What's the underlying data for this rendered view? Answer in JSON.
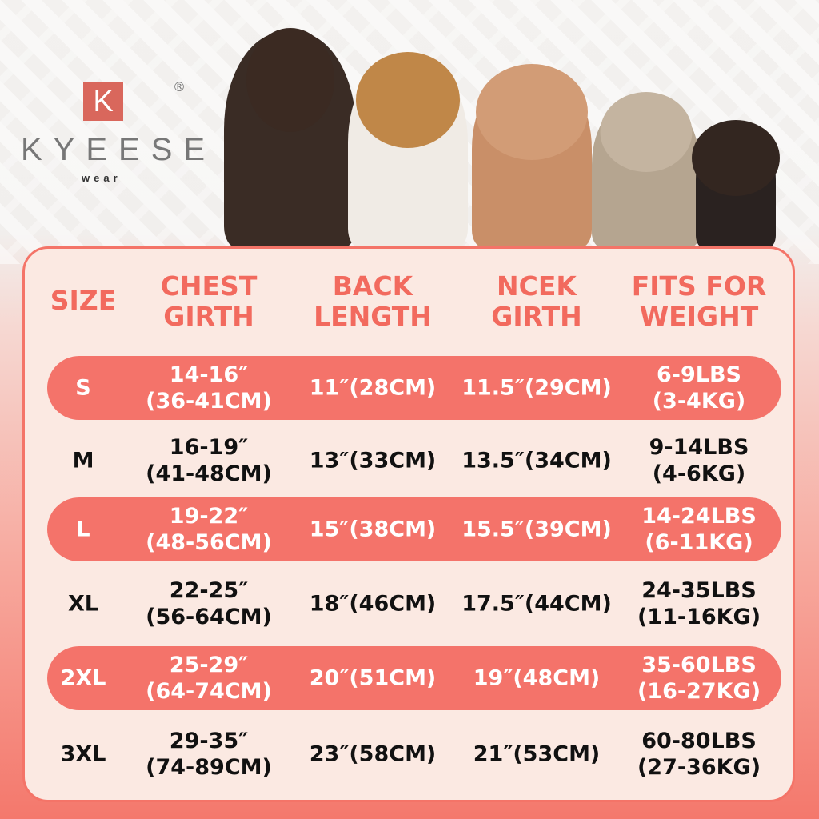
{
  "brand": {
    "logo_letter": "K",
    "name": "KYEESE",
    "sub": "wear",
    "registered": "®",
    "accent": "#f4736a",
    "panel_bg": "#fbe9e2"
  },
  "headers": [
    "SIZE",
    "CHEST\nGIRTH",
    "BACK\nLENGTH",
    "NCEK\nGIRTH",
    "FITS FOR\nWEIGHT"
  ],
  "rows": [
    {
      "size": "S",
      "chest": "14-16″\n(36-41CM)",
      "back": "11″(28CM)",
      "neck": "11.5″(29CM)",
      "weight": "6-9LBS\n(3-4KG)",
      "highlight": true
    },
    {
      "size": "M",
      "chest": "16-19″\n(41-48CM)",
      "back": "13″(33CM)",
      "neck": "13.5″(34CM)",
      "weight": "9-14LBS\n(4-6KG)",
      "highlight": false
    },
    {
      "size": "L",
      "chest": "19-22″\n(48-56CM)",
      "back": "15″(38CM)",
      "neck": "15.5″(39CM)",
      "weight": "14-24LBS\n(6-11KG)",
      "highlight": true
    },
    {
      "size": "XL",
      "chest": "22-25″\n(56-64CM)",
      "back": "18″(46CM)",
      "neck": "17.5″(44CM)",
      "weight": "24-35LBS\n(11-16KG)",
      "highlight": false
    },
    {
      "size": "2XL",
      "chest": "25-29″\n(64-74CM)",
      "back": "20″(51CM)",
      "neck": "19″(48CM)",
      "weight": "35-60LBS\n(16-27KG)",
      "highlight": true
    },
    {
      "size": "3XL",
      "chest": "29-35″\n(74-89CM)",
      "back": "23″(58CM)",
      "neck": "21″(53CM)",
      "weight": "60-80LBS\n(27-36KG)",
      "highlight": false
    }
  ]
}
